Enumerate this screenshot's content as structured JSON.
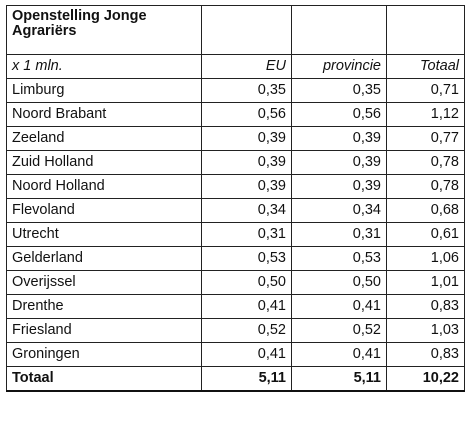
{
  "table": {
    "title": "Openstelling Jonge Agrariërs",
    "unit_label": "x 1 mln.",
    "headers": [
      "EU",
      "provincie",
      "Totaal"
    ],
    "rows": [
      {
        "name": "Limburg",
        "eu": "0,35",
        "provincie": "0,35",
        "totaal": "0,71"
      },
      {
        "name": "Noord Brabant",
        "eu": "0,56",
        "provincie": "0,56",
        "totaal": "1,12"
      },
      {
        "name": "Zeeland",
        "eu": "0,39",
        "provincie": "0,39",
        "totaal": "0,77"
      },
      {
        "name": "Zuid Holland",
        "eu": "0,39",
        "provincie": "0,39",
        "totaal": "0,78"
      },
      {
        "name": "Noord Holland",
        "eu": "0,39",
        "provincie": "0,39",
        "totaal": "0,78"
      },
      {
        "name": "Flevoland",
        "eu": "0,34",
        "provincie": "0,34",
        "totaal": "0,68"
      },
      {
        "name": "Utrecht",
        "eu": "0,31",
        "provincie": "0,31",
        "totaal": "0,61"
      },
      {
        "name": "Gelderland",
        "eu": "0,53",
        "provincie": "0,53",
        "totaal": "1,06"
      },
      {
        "name": "Overijssel",
        "eu": "0,50",
        "provincie": "0,50",
        "totaal": "1,01"
      },
      {
        "name": "Drenthe",
        "eu": "0,41",
        "provincie": "0,41",
        "totaal": "0,83"
      },
      {
        "name": "Friesland",
        "eu": "0,52",
        "provincie": "0,52",
        "totaal": "1,03"
      },
      {
        "name": "Groningen",
        "eu": "0,41",
        "provincie": "0,41",
        "totaal": "0,83"
      }
    ],
    "total": {
      "name": "Totaal",
      "eu": "5,11",
      "provincie": "5,11",
      "totaal": "10,22"
    }
  }
}
